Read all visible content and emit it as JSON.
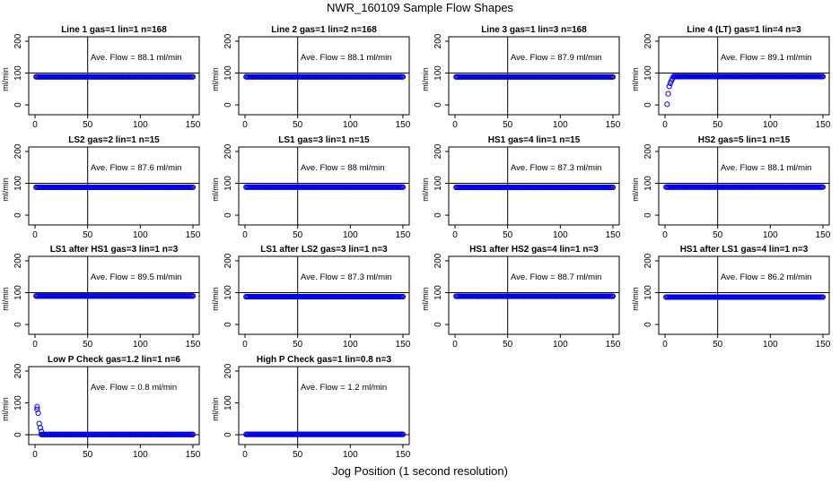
{
  "figure": {
    "title": "NWR_160109  Sample Flow Shapes",
    "xlabel": "Jog Position (1 second resolution)",
    "colors": {
      "points": "#0000ee",
      "axes": "#000000",
      "background": "#ffffff"
    }
  },
  "chart_data": [
    {
      "type": "scatter",
      "title": "Line 1 gas=1 lin=1 n=168",
      "ylabel": "ml/min",
      "annotation": "Ave. Flow =  88.1  ml/min",
      "xlim": [
        0,
        150
      ],
      "ylim": [
        0,
        200
      ],
      "xticks": [
        0,
        50,
        100,
        150
      ],
      "yticks": [
        0,
        100,
        200
      ],
      "vline": 50,
      "hline": 100,
      "x_range": [
        1,
        150
      ],
      "y_level": 88.1
    },
    {
      "type": "scatter",
      "title": "Line 2 gas=1 lin=2 n=168",
      "ylabel": "ml/min",
      "annotation": "Ave. Flow =  88.1  ml/min",
      "xlim": [
        0,
        150
      ],
      "ylim": [
        0,
        200
      ],
      "xticks": [
        0,
        50,
        100,
        150
      ],
      "yticks": [
        0,
        100,
        200
      ],
      "vline": 50,
      "hline": 100,
      "x_range": [
        1,
        150
      ],
      "y_level": 88.1
    },
    {
      "type": "scatter",
      "title": "Line 3 gas=1 lin=3 n=168",
      "ylabel": "ml/min",
      "annotation": "Ave. Flow =  87.9  ml/min",
      "xlim": [
        0,
        150
      ],
      "ylim": [
        0,
        200
      ],
      "xticks": [
        0,
        50,
        100,
        150
      ],
      "yticks": [
        0,
        100,
        200
      ],
      "vline": 50,
      "hline": 100,
      "x_range": [
        1,
        150
      ],
      "y_level": 87.9
    },
    {
      "type": "scatter",
      "title": "Line 4 (LT) gas=1 lin=4 n=3",
      "ylabel": "ml/min",
      "annotation": "Ave. Flow =  89.1  ml/min",
      "xlim": [
        0,
        150
      ],
      "ylim": [
        0,
        200
      ],
      "xticks": [
        0,
        50,
        100,
        150
      ],
      "yticks": [
        0,
        100,
        200
      ],
      "vline": 50,
      "hline": 100,
      "x_range": [
        8,
        150
      ],
      "y_level": 89.1,
      "startup_points": [
        [
          2,
          2
        ],
        [
          3,
          35
        ],
        [
          4,
          58
        ],
        [
          5,
          68
        ],
        [
          6,
          75
        ],
        [
          7,
          82
        ]
      ]
    },
    {
      "type": "scatter",
      "title": "LS2 gas=2 lin=1 n=15",
      "ylabel": "ml/min",
      "annotation": "Ave. Flow =  87.6  ml/min",
      "xlim": [
        0,
        150
      ],
      "ylim": [
        0,
        200
      ],
      "xticks": [
        0,
        50,
        100,
        150
      ],
      "yticks": [
        0,
        100,
        200
      ],
      "vline": 50,
      "hline": 100,
      "x_range": [
        1,
        150
      ],
      "y_level": 87.6
    },
    {
      "type": "scatter",
      "title": "LS1 gas=3 lin=1 n=15",
      "ylabel": "ml/min",
      "annotation": "Ave. Flow =  88  ml/min",
      "xlim": [
        0,
        150
      ],
      "ylim": [
        0,
        200
      ],
      "xticks": [
        0,
        50,
        100,
        150
      ],
      "yticks": [
        0,
        100,
        200
      ],
      "vline": 50,
      "hline": 100,
      "x_range": [
        1,
        150
      ],
      "y_level": 88
    },
    {
      "type": "scatter",
      "title": "HS1 gas=4 lin=1 n=15",
      "ylabel": "ml/min",
      "annotation": "Ave. Flow =  87.3  ml/min",
      "xlim": [
        0,
        150
      ],
      "ylim": [
        0,
        200
      ],
      "xticks": [
        0,
        50,
        100,
        150
      ],
      "yticks": [
        0,
        100,
        200
      ],
      "vline": 50,
      "hline": 100,
      "x_range": [
        1,
        150
      ],
      "y_level": 87.3
    },
    {
      "type": "scatter",
      "title": "HS2 gas=5 lin=1 n=15",
      "ylabel": "ml/min",
      "annotation": "Ave. Flow =  88.1  ml/min",
      "xlim": [
        0,
        150
      ],
      "ylim": [
        0,
        200
      ],
      "xticks": [
        0,
        50,
        100,
        150
      ],
      "yticks": [
        0,
        100,
        200
      ],
      "vline": 50,
      "hline": 100,
      "x_range": [
        1,
        150
      ],
      "y_level": 88.1
    },
    {
      "type": "scatter",
      "title": "LS1 after HS1 gas=3 lin=1 n=3",
      "ylabel": "ml/min",
      "annotation": "Ave. Flow =  89.5  ml/min",
      "xlim": [
        0,
        150
      ],
      "ylim": [
        0,
        200
      ],
      "xticks": [
        0,
        50,
        100,
        150
      ],
      "yticks": [
        0,
        100,
        200
      ],
      "vline": 50,
      "hline": 100,
      "x_range": [
        1,
        150
      ],
      "y_level": 89.5
    },
    {
      "type": "scatter",
      "title": "LS1 after LS2 gas=3 lin=1 n=3",
      "ylabel": "ml/min",
      "annotation": "Ave. Flow =  87.3  ml/min",
      "xlim": [
        0,
        150
      ],
      "ylim": [
        0,
        200
      ],
      "xticks": [
        0,
        50,
        100,
        150
      ],
      "yticks": [
        0,
        100,
        200
      ],
      "vline": 50,
      "hline": 100,
      "x_range": [
        1,
        150
      ],
      "y_level": 87.3
    },
    {
      "type": "scatter",
      "title": "HS1 after HS2 gas=4 lin=1 n=3",
      "ylabel": "ml/min",
      "annotation": "Ave. Flow =  88.7  ml/min",
      "xlim": [
        0,
        150
      ],
      "ylim": [
        0,
        200
      ],
      "xticks": [
        0,
        50,
        100,
        150
      ],
      "yticks": [
        0,
        100,
        200
      ],
      "vline": 50,
      "hline": 100,
      "x_range": [
        1,
        150
      ],
      "y_level": 88.7
    },
    {
      "type": "scatter",
      "title": "HS1 after LS1 gas=4 lin=1 n=3",
      "ylabel": "ml/min",
      "annotation": "Ave. Flow =  86.2  ml/min",
      "xlim": [
        0,
        150
      ],
      "ylim": [
        0,
        200
      ],
      "xticks": [
        0,
        50,
        100,
        150
      ],
      "yticks": [
        0,
        100,
        200
      ],
      "vline": 50,
      "hline": 100,
      "x_range": [
        1,
        150
      ],
      "y_level": 86.2
    },
    {
      "type": "scatter",
      "title": "Low P Check gas=1.2 lin=1 n=6",
      "ylabel": "ml/min",
      "annotation": "Ave. Flow =  0.8  ml/min",
      "xlim": [
        0,
        150
      ],
      "ylim": [
        0,
        200
      ],
      "xticks": [
        0,
        50,
        100,
        150
      ],
      "yticks": [
        0,
        100,
        200
      ],
      "vline": 50,
      "hline": 0,
      "x_range": [
        6,
        150
      ],
      "y_level": 0.8,
      "startup_points": [
        [
          2,
          88
        ],
        [
          2,
          80
        ],
        [
          3,
          68
        ],
        [
          4,
          35
        ],
        [
          5,
          22
        ],
        [
          6,
          10
        ]
      ]
    },
    {
      "type": "scatter",
      "title": "High P Check gas=1 lin=0.8 n=3",
      "ylabel": "ml/min",
      "annotation": "Ave. Flow =  1.2  ml/min",
      "xlim": [
        0,
        150
      ],
      "ylim": [
        0,
        200
      ],
      "xticks": [
        0,
        50,
        100,
        150
      ],
      "yticks": [
        0,
        100,
        200
      ],
      "vline": 50,
      "hline": 0,
      "x_range": [
        1,
        150
      ],
      "y_level": 1.2
    }
  ]
}
